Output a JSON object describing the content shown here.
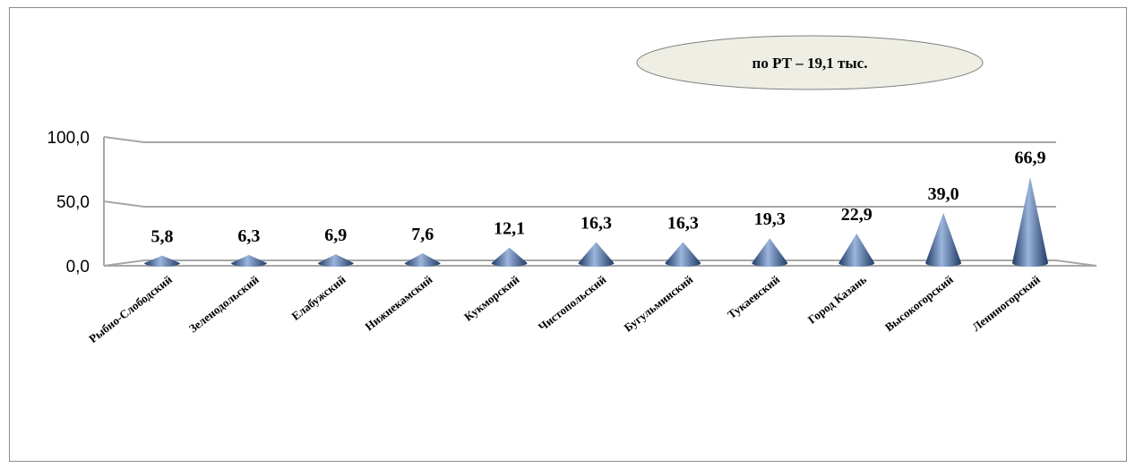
{
  "chart_data": {
    "type": "bar",
    "shape": "cone-3d",
    "categories": [
      "Рыбно-Слободский",
      "Зеленодольский",
      "Елабужский",
      "Нижнекамский",
      "Кукморский",
      "Чистопольский",
      "Бугульминский",
      "Тукаевский",
      "Город Казань",
      "Высокогорский",
      "Лениногорский"
    ],
    "values": [
      5.8,
      6.3,
      6.9,
      7.6,
      12.1,
      16.3,
      16.3,
      19.3,
      22.9,
      39.0,
      66.9
    ],
    "value_labels": [
      "5,8",
      "6,3",
      "6,9",
      "7,6",
      "12,1",
      "16,3",
      "16,3",
      "19,3",
      "22,9",
      "39,0",
      "66,9"
    ],
    "y_ticks": [
      {
        "value": 0,
        "label": "0,0"
      },
      {
        "value": 50,
        "label": "50,0"
      },
      {
        "value": 100,
        "label": "100,0"
      }
    ],
    "ylim": [
      0,
      100
    ],
    "grid": true,
    "annotation": "по РТ – 19,1 тыс.",
    "colors": {
      "cone": "#4a6fa5",
      "cone_dark": "#1f3a66",
      "cone_light": "#9bb5dc",
      "grid": "#a6a6a6",
      "note_fill": "#eeeee4",
      "note_border": "#7f7f7f"
    }
  }
}
